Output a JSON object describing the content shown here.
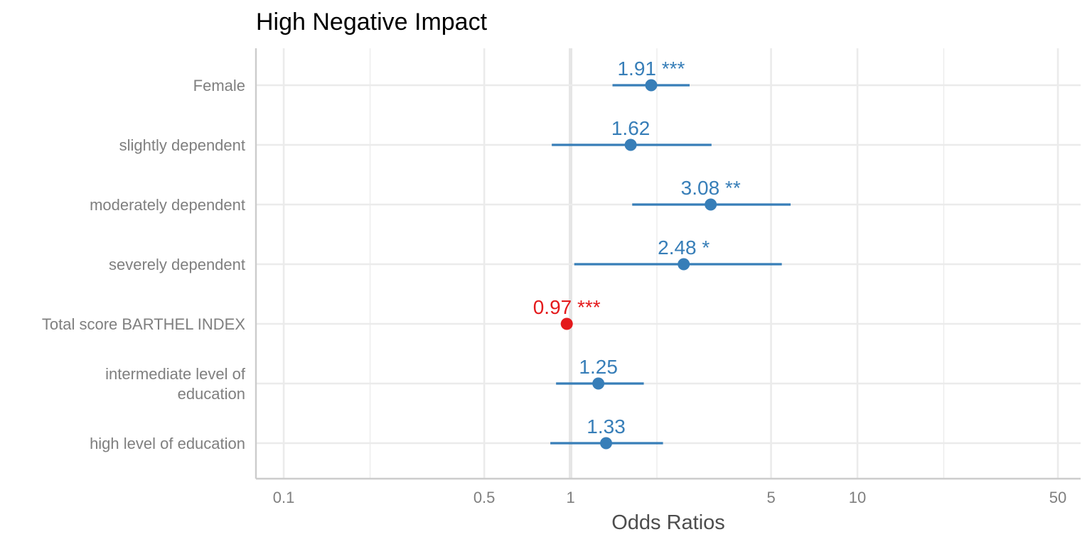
{
  "chart_data": {
    "type": "forest",
    "title": "High Negative Impact",
    "xlabel": "Odds Ratios",
    "ylabel": "",
    "x_scale": "log10",
    "xlim": [
      0.08,
      60
    ],
    "x_ticks": [
      0.1,
      0.5,
      1,
      5,
      10,
      50
    ],
    "x_tick_labels": [
      "0.1",
      "0.5",
      "1",
      "5",
      "10",
      "50"
    ],
    "x_minor_gridlines": [
      0.2,
      2,
      20
    ],
    "reference_line": 1,
    "grid": true,
    "terms": [
      {
        "label": [
          "Female"
        ],
        "estimate": 1.91,
        "ci_low": 1.4,
        "ci_high": 2.6,
        "stars": "***",
        "label_text": "1.91 ***",
        "effect": "positive"
      },
      {
        "label": [
          "slightly dependent"
        ],
        "estimate": 1.62,
        "ci_low": 0.86,
        "ci_high": 3.1,
        "stars": "",
        "label_text": "1.62",
        "effect": "positive"
      },
      {
        "label": [
          "moderately dependent"
        ],
        "estimate": 3.08,
        "ci_low": 1.64,
        "ci_high": 5.85,
        "stars": "**",
        "label_text": "3.08 **",
        "effect": "positive"
      },
      {
        "label": [
          "severely dependent"
        ],
        "estimate": 2.48,
        "ci_low": 1.03,
        "ci_high": 5.45,
        "stars": "*",
        "label_text": "2.48 *",
        "effect": "positive"
      },
      {
        "label": [
          "Total score BARTHEL INDEX"
        ],
        "estimate": 0.97,
        "ci_low": 0.96,
        "ci_high": 0.98,
        "stars": "***",
        "label_text": "0.97 ***",
        "effect": "negative"
      },
      {
        "label": [
          "intermediate level of",
          "education"
        ],
        "estimate": 1.25,
        "ci_low": 0.89,
        "ci_high": 1.8,
        "stars": "",
        "label_text": "1.25",
        "effect": "positive"
      },
      {
        "label": [
          "high level of education"
        ],
        "estimate": 1.33,
        "ci_low": 0.85,
        "ci_high": 2.1,
        "stars": "",
        "label_text": "1.33",
        "effect": "positive"
      }
    ],
    "colors": {
      "positive": "#377eb8",
      "negative": "#e41a1c",
      "grid": "#ebebeb",
      "axis": "#cccccc",
      "tick_label": "#7f7f7f",
      "axis_title": "#4d4d4d"
    },
    "legend": "none"
  }
}
